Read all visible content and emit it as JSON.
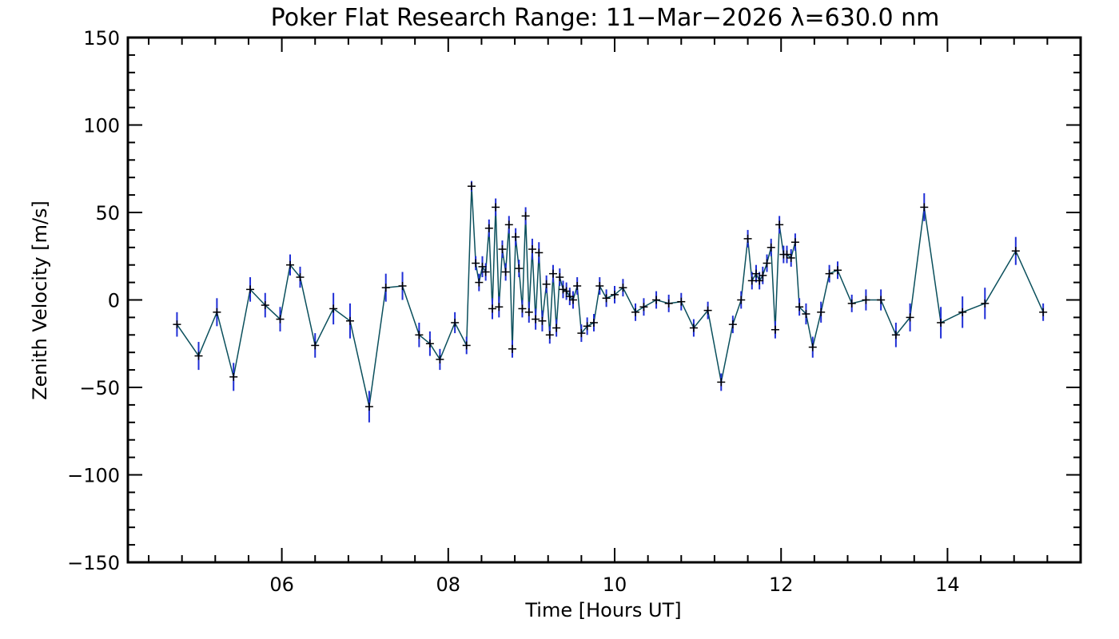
{
  "chart_data": {
    "type": "line",
    "title": "Poker Flat Research Range: 11−Mar−2026 λ=630.0 nm",
    "xlabel": "Time [Hours UT]",
    "ylabel": "Zenith Velocity [m/s]",
    "xlim": [
      4.15,
      15.6
    ],
    "ylim": [
      -150,
      150
    ],
    "x_ticks": [
      6,
      8,
      10,
      12,
      14
    ],
    "x_tick_labels": [
      "06",
      "08",
      "10",
      "12",
      "14"
    ],
    "y_ticks": [
      -150,
      -100,
      -50,
      0,
      50,
      100,
      150
    ],
    "y_tick_labels": [
      "−150",
      "−100",
      "−50",
      "0",
      "50",
      "100",
      "150"
    ],
    "grid": false,
    "colors": {
      "line": "#0a4f5c",
      "error_bar": "#1f2ed6",
      "marker": "#000000",
      "axis": "#000000"
    },
    "series": [
      {
        "name": "Zenith velocity",
        "points": [
          {
            "x": 4.74,
            "y": -14,
            "err": 7
          },
          {
            "x": 5.0,
            "y": -32,
            "err": 8
          },
          {
            "x": 5.22,
            "y": -7,
            "err": 8
          },
          {
            "x": 5.42,
            "y": -44,
            "err": 8
          },
          {
            "x": 5.62,
            "y": 6,
            "err": 7
          },
          {
            "x": 5.8,
            "y": -3,
            "err": 7
          },
          {
            "x": 5.98,
            "y": -11,
            "err": 7
          },
          {
            "x": 6.1,
            "y": 20,
            "err": 6
          },
          {
            "x": 6.22,
            "y": 13,
            "err": 6
          },
          {
            "x": 6.4,
            "y": -26,
            "err": 7
          },
          {
            "x": 6.62,
            "y": -5,
            "err": 9
          },
          {
            "x": 6.82,
            "y": -12,
            "err": 10
          },
          {
            "x": 7.05,
            "y": -61,
            "err": 9
          },
          {
            "x": 7.25,
            "y": 7,
            "err": 8
          },
          {
            "x": 7.45,
            "y": 8,
            "err": 8
          },
          {
            "x": 7.65,
            "y": -20,
            "err": 7
          },
          {
            "x": 7.78,
            "y": -25,
            "err": 7
          },
          {
            "x": 7.9,
            "y": -34,
            "err": 6
          },
          {
            "x": 8.08,
            "y": -13,
            "err": 6
          },
          {
            "x": 8.22,
            "y": -26,
            "err": 5
          },
          {
            "x": 8.28,
            "y": 65,
            "err": 3
          },
          {
            "x": 8.33,
            "y": 21,
            "err": 4
          },
          {
            "x": 8.37,
            "y": 10,
            "err": 5
          },
          {
            "x": 8.41,
            "y": 19,
            "err": 6
          },
          {
            "x": 8.45,
            "y": 16,
            "err": 5
          },
          {
            "x": 8.49,
            "y": 41,
            "err": 5
          },
          {
            "x": 8.53,
            "y": -5,
            "err": 6
          },
          {
            "x": 8.57,
            "y": 53,
            "err": 5
          },
          {
            "x": 8.61,
            "y": -4,
            "err": 6
          },
          {
            "x": 8.65,
            "y": 29,
            "err": 5
          },
          {
            "x": 8.69,
            "y": 16,
            "err": 5
          },
          {
            "x": 8.73,
            "y": 43,
            "err": 5
          },
          {
            "x": 8.77,
            "y": -28,
            "err": 5
          },
          {
            "x": 8.81,
            "y": 36,
            "err": 5
          },
          {
            "x": 8.85,
            "y": 18,
            "err": 5
          },
          {
            "x": 8.89,
            "y": -5,
            "err": 5
          },
          {
            "x": 8.93,
            "y": 48,
            "err": 5
          },
          {
            "x": 8.97,
            "y": -7,
            "err": 6
          },
          {
            "x": 9.01,
            "y": 29,
            "err": 6
          },
          {
            "x": 9.05,
            "y": -11,
            "err": 6
          },
          {
            "x": 9.09,
            "y": 27,
            "err": 6
          },
          {
            "x": 9.13,
            "y": -12,
            "err": 6
          },
          {
            "x": 9.18,
            "y": 9,
            "err": 5
          },
          {
            "x": 9.22,
            "y": -20,
            "err": 5
          },
          {
            "x": 9.26,
            "y": 15,
            "err": 5
          },
          {
            "x": 9.3,
            "y": -16,
            "err": 5
          },
          {
            "x": 9.34,
            "y": 13,
            "err": 5
          },
          {
            "x": 9.38,
            "y": 6,
            "err": 5
          },
          {
            "x": 9.42,
            "y": 5,
            "err": 5
          },
          {
            "x": 9.46,
            "y": 2,
            "err": 5
          },
          {
            "x": 9.5,
            "y": 0,
            "err": 5
          },
          {
            "x": 9.55,
            "y": 8,
            "err": 5
          },
          {
            "x": 9.6,
            "y": -19,
            "err": 5
          },
          {
            "x": 9.67,
            "y": -15,
            "err": 5
          },
          {
            "x": 9.75,
            "y": -13,
            "err": 5
          },
          {
            "x": 9.82,
            "y": 8,
            "err": 5
          },
          {
            "x": 9.9,
            "y": 1,
            "err": 5
          },
          {
            "x": 10.0,
            "y": 3,
            "err": 5
          },
          {
            "x": 10.1,
            "y": 7,
            "err": 5
          },
          {
            "x": 10.25,
            "y": -7,
            "err": 5
          },
          {
            "x": 10.35,
            "y": -4,
            "err": 5
          },
          {
            "x": 10.5,
            "y": 0,
            "err": 5
          },
          {
            "x": 10.65,
            "y": -2,
            "err": 5
          },
          {
            "x": 10.8,
            "y": -1,
            "err": 5
          },
          {
            "x": 10.95,
            "y": -16,
            "err": 5
          },
          {
            "x": 11.12,
            "y": -6,
            "err": 5
          },
          {
            "x": 11.28,
            "y": -47,
            "err": 5
          },
          {
            "x": 11.42,
            "y": -14,
            "err": 5
          },
          {
            "x": 11.52,
            "y": 0,
            "err": 5
          },
          {
            "x": 11.6,
            "y": 35,
            "err": 5
          },
          {
            "x": 11.65,
            "y": 11,
            "err": 5
          },
          {
            "x": 11.7,
            "y": 15,
            "err": 5
          },
          {
            "x": 11.74,
            "y": 11,
            "err": 5
          },
          {
            "x": 11.78,
            "y": 14,
            "err": 5
          },
          {
            "x": 11.83,
            "y": 21,
            "err": 5
          },
          {
            "x": 11.88,
            "y": 30,
            "err": 5
          },
          {
            "x": 11.93,
            "y": -17,
            "err": 5
          },
          {
            "x": 11.98,
            "y": 43,
            "err": 5
          },
          {
            "x": 12.03,
            "y": 26,
            "err": 5
          },
          {
            "x": 12.07,
            "y": 26,
            "err": 5
          },
          {
            "x": 12.12,
            "y": 24,
            "err": 5
          },
          {
            "x": 12.17,
            "y": 33,
            "err": 5
          },
          {
            "x": 12.22,
            "y": -4,
            "err": 5
          },
          {
            "x": 12.3,
            "y": -8,
            "err": 6
          },
          {
            "x": 12.38,
            "y": -27,
            "err": 6
          },
          {
            "x": 12.48,
            "y": -7,
            "err": 6
          },
          {
            "x": 12.58,
            "y": 15,
            "err": 5
          },
          {
            "x": 12.68,
            "y": 17,
            "err": 5
          },
          {
            "x": 12.85,
            "y": -2,
            "err": 5
          },
          {
            "x": 13.02,
            "y": 0,
            "err": 6
          },
          {
            "x": 13.2,
            "y": 0,
            "err": 6
          },
          {
            "x": 13.38,
            "y": -20,
            "err": 7
          },
          {
            "x": 13.55,
            "y": -10,
            "err": 8
          },
          {
            "x": 13.72,
            "y": 53,
            "err": 8
          },
          {
            "x": 13.92,
            "y": -13,
            "err": 9
          },
          {
            "x": 14.18,
            "y": -7,
            "err": 9
          },
          {
            "x": 14.45,
            "y": -2,
            "err": 9
          },
          {
            "x": 14.82,
            "y": 28,
            "err": 8
          },
          {
            "x": 15.15,
            "y": -7,
            "err": 5
          }
        ]
      }
    ]
  }
}
